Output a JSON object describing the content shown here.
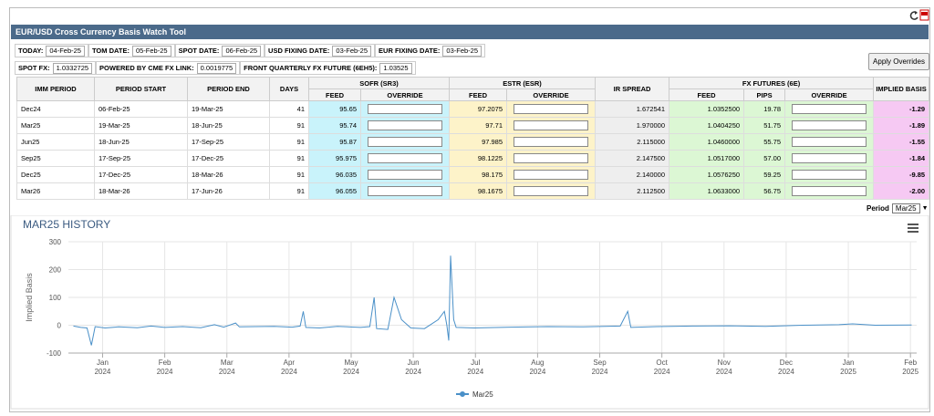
{
  "header": {
    "title": "EUR/USD Cross Currency Basis Watch Tool"
  },
  "info_rows": [
    [
      {
        "label": "TODAY:",
        "value": "04-Feb-25"
      },
      {
        "label": "TOM DATE:",
        "value": "05-Feb-25"
      },
      {
        "label": "SPOT DATE:",
        "value": "06-Feb-25"
      },
      {
        "label": "USD FIXING DATE:",
        "value": "03-Feb-25"
      },
      {
        "label": "EUR FIXING DATE:",
        "value": "03-Feb-25"
      }
    ],
    [
      {
        "label": "SPOT FX:",
        "value": "1.0332725"
      },
      {
        "label": "POWERED BY CME FX LINK:",
        "value": "0.0019775"
      },
      {
        "label": "FRONT QUARTERLY FX FUTURE (6EH5):",
        "value": "1.03525"
      }
    ]
  ],
  "apply_button": "Apply Overrides",
  "table": {
    "groups": {
      "sofr": "SOFR (SR3)",
      "estr": "ESTR (ESR)",
      "fx": "FX FUTURES (6E)"
    },
    "headers": [
      "IMM PERIOD",
      "PERIOD START",
      "PERIOD END",
      "DAYS",
      "FEED",
      "OVERRIDE",
      "FEED",
      "OVERRIDE",
      "IR SPREAD",
      "FEED",
      "PIPS",
      "OVERRIDE",
      "IMPLIED BASIS"
    ],
    "rows": [
      [
        "Dec24",
        "06-Feb-25",
        "19-Mar-25",
        "41",
        "95.65",
        "97.2075",
        "1.672541",
        "1.0352500",
        "19.78",
        "-1.29"
      ],
      [
        "Mar25",
        "19-Mar-25",
        "18-Jun-25",
        "91",
        "95.74",
        "97.71",
        "1.970000",
        "1.0404250",
        "51.75",
        "-1.89"
      ],
      [
        "Jun25",
        "18-Jun-25",
        "17-Sep-25",
        "91",
        "95.87",
        "97.985",
        "2.115000",
        "1.0460000",
        "55.75",
        "-1.55"
      ],
      [
        "Sep25",
        "17-Sep-25",
        "17-Dec-25",
        "91",
        "95.975",
        "98.1225",
        "2.147500",
        "1.0517000",
        "57.00",
        "-1.84"
      ],
      [
        "Dec25",
        "17-Dec-25",
        "18-Mar-26",
        "91",
        "96.035",
        "98.175",
        "2.140000",
        "1.0576250",
        "59.25",
        "-9.85"
      ],
      [
        "Mar26",
        "18-Mar-26",
        "17-Jun-26",
        "91",
        "96.055",
        "98.1675",
        "2.112500",
        "1.0633000",
        "56.75",
        "-2.00"
      ]
    ]
  },
  "period_selector": {
    "label": "Period",
    "selected": "Mar25"
  },
  "chart_data": {
    "type": "line",
    "title": "MAR25 HISTORY",
    "y_label": "Implied Basis",
    "ylim": [
      -100,
      300
    ],
    "yticks": [
      -100,
      0,
      100,
      200,
      300
    ],
    "xlim": [
      -0.55,
      13.1
    ],
    "xticks": [
      {
        "value": 0,
        "label": "Jan 2024"
      },
      {
        "value": 1,
        "label": "Feb 2024"
      },
      {
        "value": 2,
        "label": "Mar 2024"
      },
      {
        "value": 3,
        "label": "Apr 2024"
      },
      {
        "value": 4,
        "label": "May 2024"
      },
      {
        "value": 5,
        "label": "Jun 2024"
      },
      {
        "value": 6,
        "label": "Jul 2024"
      },
      {
        "value": 7,
        "label": "Aug 2024"
      },
      {
        "value": 8,
        "label": "Sep 2024"
      },
      {
        "value": 9,
        "label": "Oct 2024"
      },
      {
        "value": 10,
        "label": "Nov 2024"
      },
      {
        "value": 11,
        "label": "Dec 2024"
      },
      {
        "value": 12,
        "label": "Jan 2025"
      },
      {
        "value": 13,
        "label": "Feb 2025"
      }
    ],
    "grid": true,
    "x": [
      -0.47,
      -0.35,
      -0.25,
      -0.18,
      -0.12,
      0.04,
      0.26,
      0.56,
      0.78,
      1.0,
      1.29,
      1.58,
      1.8,
      1.95,
      2.14,
      2.2,
      2.46,
      2.76,
      3.05,
      3.18,
      3.23,
      3.27,
      3.49,
      3.78,
      4.15,
      4.3,
      4.37,
      4.41,
      4.59,
      4.69,
      4.81,
      4.96,
      5.18,
      5.4,
      5.5,
      5.54,
      5.57,
      5.6,
      5.65,
      5.69,
      5.98,
      6.57,
      7.16,
      7.74,
      8.33,
      8.45,
      8.5,
      8.92,
      9.5,
      10.09,
      10.67,
      11.26,
      11.85,
      12.07,
      12.43,
      13.02
    ],
    "series": [
      {
        "name": "Mar25",
        "color": "#4a90c8",
        "values": [
          -3,
          -8,
          -10,
          -72,
          -5,
          -10,
          -6,
          -9,
          -3,
          -8,
          -5,
          -9,
          2,
          -7,
          8,
          -6,
          -5,
          -4,
          -7,
          -3,
          50,
          -8,
          -10,
          -4,
          -8,
          -5,
          100,
          -12,
          -15,
          100,
          20,
          -10,
          -12,
          20,
          50,
          0,
          -55,
          250,
          20,
          -8,
          -10,
          -7,
          -5,
          -6,
          -3,
          50,
          -8,
          -5,
          -3,
          -2,
          -4,
          0,
          2,
          5,
          0,
          1
        ]
      }
    ]
  }
}
